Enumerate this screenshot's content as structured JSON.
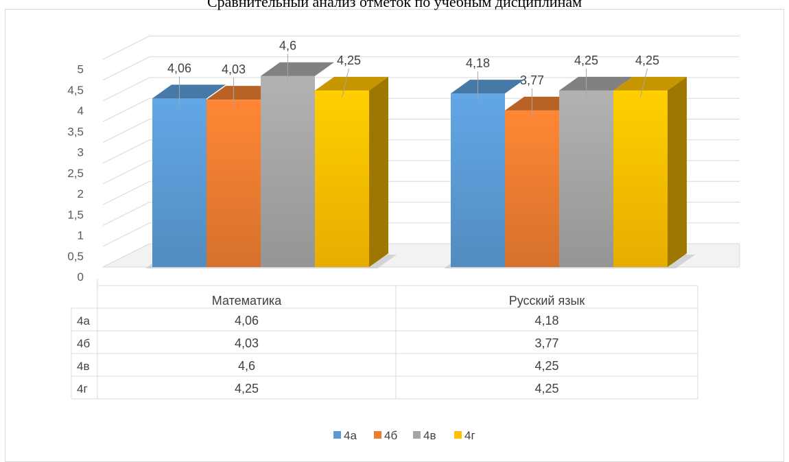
{
  "chart_data": {
    "type": "bar",
    "title": "Сравнительный анализ отметок по учебным дисциплинам",
    "categories": [
      "Математика",
      "Русский язык"
    ],
    "series": [
      {
        "name": "4а",
        "values": [
          4.06,
          4.18
        ],
        "color": "#5b9bd5"
      },
      {
        "name": "4б",
        "values": [
          4.03,
          3.77
        ],
        "color": "#ed7d31"
      },
      {
        "name": "4в",
        "values": [
          4.6,
          4.25
        ],
        "color": "#a5a5a5"
      },
      {
        "name": "4г",
        "values": [
          4.25,
          4.25
        ],
        "color": "#ffc000"
      }
    ],
    "data_labels": [
      [
        "4,06",
        "4,18"
      ],
      [
        "4,03",
        "3,77"
      ],
      [
        "4,6",
        "4,25"
      ],
      [
        "4,25",
        "4,25"
      ]
    ],
    "y_ticks": [
      "0",
      "0,5",
      "1",
      "1,5",
      "2",
      "2,5",
      "3",
      "3,5",
      "4",
      "4,5",
      "5"
    ],
    "ylim": [
      0,
      5
    ],
    "grid": true,
    "legend": "bottom",
    "data_table": true,
    "style": "3d-clustered-column"
  }
}
